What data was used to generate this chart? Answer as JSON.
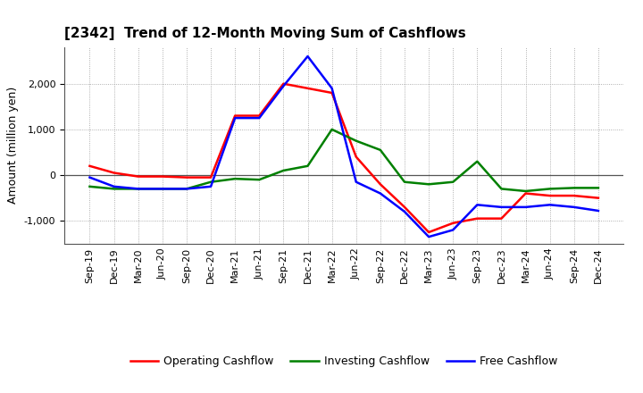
{
  "title": "[2342]  Trend of 12-Month Moving Sum of Cashflows",
  "ylabel": "Amount (million yen)",
  "x_labels": [
    "Sep-19",
    "Dec-19",
    "Mar-20",
    "Jun-20",
    "Sep-20",
    "Dec-20",
    "Mar-21",
    "Jun-21",
    "Sep-21",
    "Dec-21",
    "Mar-22",
    "Jun-22",
    "Sep-22",
    "Dec-22",
    "Mar-23",
    "Jun-23",
    "Sep-23",
    "Dec-23",
    "Mar-24",
    "Jun-24",
    "Sep-24",
    "Dec-24"
  ],
  "operating": [
    200,
    50,
    -30,
    -30,
    -50,
    -50,
    1300,
    1300,
    2000,
    1900,
    1800,
    400,
    -200,
    -700,
    -1250,
    -1050,
    -950,
    -950,
    -400,
    -450,
    -450,
    -500
  ],
  "investing": [
    -250,
    -300,
    -300,
    -300,
    -300,
    -150,
    -80,
    -100,
    100,
    200,
    1000,
    750,
    550,
    -150,
    -200,
    -150,
    300,
    -300,
    -350,
    -300,
    -280,
    -280
  ],
  "free": [
    -50,
    -250,
    -300,
    -300,
    -300,
    -250,
    1250,
    1250,
    1950,
    2600,
    1900,
    -150,
    -400,
    -800,
    -1350,
    -1200,
    -650,
    -700,
    -700,
    -650,
    -700,
    -780
  ],
  "ylim": [
    -1500,
    2800
  ],
  "yticks": [
    -1000,
    0,
    1000,
    2000
  ],
  "operating_color": "#ff0000",
  "investing_color": "#008000",
  "free_color": "#0000ff",
  "background_color": "#ffffff",
  "grid_color": "#999999",
  "linewidth": 1.8,
  "title_fontsize": 11,
  "ylabel_fontsize": 9,
  "tick_fontsize": 8,
  "legend_fontsize": 9
}
